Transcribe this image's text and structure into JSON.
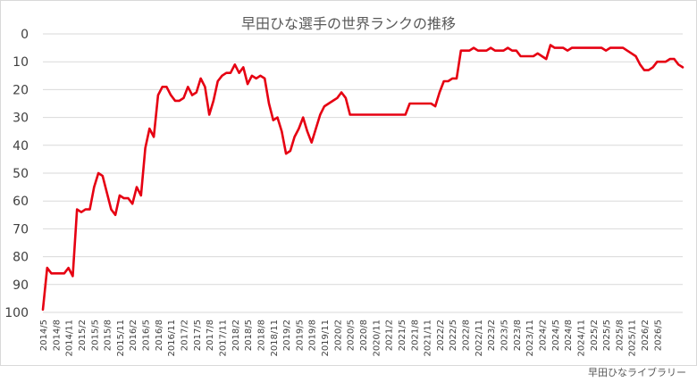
{
  "chart_data": {
    "type": "line",
    "title": "早田ひな選手の世界ランクの推移",
    "xlabel": "",
    "ylabel": "",
    "y_reversed": true,
    "ylim": [
      0,
      100
    ],
    "ytick_labels": [
      "0",
      "10",
      "20",
      "30",
      "40",
      "50",
      "60",
      "70",
      "80",
      "90",
      "100"
    ],
    "x_tick_labels": [
      "2014/5",
      "2014/8",
      "2014/11",
      "2015/2",
      "2015/5",
      "2015/8",
      "2015/11",
      "2016/2",
      "2016/5",
      "2016/8",
      "2016/11",
      "2017/2",
      "2017/5",
      "2017/8",
      "2017/11",
      "2018/2",
      "2018/5",
      "2018/8",
      "2018/11",
      "2019/2",
      "2019/5",
      "2019/8",
      "2019/11",
      "2020/2",
      "2020/5",
      "2020/8",
      "2020/11",
      "2021/2",
      "2021/5",
      "2021/8",
      "2021/11",
      "2022/2",
      "2022/5",
      "2022/8",
      "2022/11",
      "2023/2",
      "2023/5",
      "2023/8",
      "2023/11",
      "2024/2",
      "2024/5",
      "2024/8",
      "2024/11",
      "2025/2",
      "2025/5",
      "2025/8",
      "2025/11",
      "2026/2",
      "2026/5"
    ],
    "grid": true,
    "line_color": "#e60012",
    "series": [
      {
        "values": [
          [
            0,
            99
          ],
          [
            1,
            84
          ],
          [
            2,
            86
          ],
          [
            3,
            86
          ],
          [
            4,
            86
          ],
          [
            5,
            86
          ],
          [
            6,
            84
          ],
          [
            7,
            87
          ],
          [
            8,
            63
          ],
          [
            9,
            64
          ],
          [
            10,
            63
          ],
          [
            11,
            63
          ],
          [
            12,
            55
          ],
          [
            13,
            50
          ],
          [
            14,
            51
          ],
          [
            15,
            57
          ],
          [
            16,
            63
          ],
          [
            17,
            65
          ],
          [
            18,
            58
          ],
          [
            19,
            59
          ],
          [
            20,
            59
          ],
          [
            21,
            61
          ],
          [
            22,
            55
          ],
          [
            23,
            58
          ],
          [
            24,
            41
          ],
          [
            25,
            34
          ],
          [
            26,
            37
          ],
          [
            27,
            22
          ],
          [
            28,
            19
          ],
          [
            29,
            19
          ],
          [
            30,
            22
          ],
          [
            31,
            24
          ],
          [
            32,
            24
          ],
          [
            33,
            23
          ],
          [
            34,
            19
          ],
          [
            35,
            22
          ],
          [
            36,
            21
          ],
          [
            37,
            16
          ],
          [
            38,
            19
          ],
          [
            39,
            29
          ],
          [
            40,
            24
          ],
          [
            41,
            17
          ],
          [
            42,
            15
          ],
          [
            43,
            14
          ],
          [
            44,
            14
          ],
          [
            45,
            11
          ],
          [
            46,
            14
          ],
          [
            47,
            12
          ],
          [
            48,
            18
          ],
          [
            49,
            15
          ],
          [
            50,
            16
          ],
          [
            51,
            15
          ],
          [
            52,
            16
          ],
          [
            53,
            25
          ],
          [
            54,
            31
          ],
          [
            55,
            30
          ],
          [
            56,
            35
          ],
          [
            57,
            43
          ],
          [
            58,
            42
          ],
          [
            59,
            37
          ],
          [
            60,
            34
          ],
          [
            61,
            30
          ],
          [
            62,
            35
          ],
          [
            63,
            39
          ],
          [
            64,
            34
          ],
          [
            65,
            29
          ],
          [
            66,
            26
          ],
          [
            67,
            25
          ],
          [
            68,
            24
          ],
          [
            69,
            23
          ],
          [
            70,
            21
          ],
          [
            71,
            23
          ],
          [
            72,
            29
          ],
          [
            73,
            29
          ],
          [
            74,
            29
          ],
          [
            75,
            29
          ],
          [
            76,
            29
          ],
          [
            77,
            29
          ],
          [
            78,
            29
          ],
          [
            79,
            29
          ],
          [
            80,
            29
          ],
          [
            81,
            29
          ],
          [
            82,
            29
          ],
          [
            83,
            29
          ],
          [
            84,
            29
          ],
          [
            85,
            29
          ],
          [
            86,
            25
          ],
          [
            87,
            25
          ],
          [
            88,
            25
          ],
          [
            89,
            25
          ],
          [
            90,
            25
          ],
          [
            91,
            25
          ],
          [
            92,
            26
          ],
          [
            93,
            21
          ],
          [
            94,
            17
          ],
          [
            95,
            17
          ],
          [
            96,
            16
          ],
          [
            97,
            16
          ],
          [
            98,
            6
          ],
          [
            99,
            6
          ],
          [
            100,
            6
          ],
          [
            101,
            5
          ],
          [
            102,
            6
          ],
          [
            103,
            6
          ],
          [
            104,
            6
          ],
          [
            105,
            5
          ],
          [
            106,
            6
          ],
          [
            107,
            6
          ],
          [
            108,
            6
          ],
          [
            109,
            5
          ],
          [
            110,
            6
          ],
          [
            111,
            6
          ],
          [
            112,
            8
          ],
          [
            113,
            8
          ],
          [
            114,
            8
          ],
          [
            115,
            8
          ],
          [
            116,
            7
          ],
          [
            117,
            8
          ],
          [
            118,
            9
          ],
          [
            119,
            4
          ],
          [
            120,
            5
          ],
          [
            121,
            5
          ],
          [
            122,
            5
          ],
          [
            123,
            6
          ],
          [
            124,
            5
          ],
          [
            125,
            5
          ],
          [
            126,
            5
          ],
          [
            127,
            5
          ],
          [
            128,
            5
          ],
          [
            129,
            5
          ],
          [
            130,
            5
          ],
          [
            131,
            5
          ],
          [
            132,
            6
          ],
          [
            133,
            5
          ],
          [
            134,
            5
          ],
          [
            135,
            5
          ],
          [
            136,
            5
          ],
          [
            137,
            6
          ],
          [
            138,
            7
          ],
          [
            139,
            8
          ],
          [
            140,
            11
          ],
          [
            141,
            13
          ],
          [
            142,
            13
          ],
          [
            143,
            12
          ],
          [
            144,
            10
          ],
          [
            145,
            10
          ],
          [
            146,
            10
          ],
          [
            147,
            9
          ],
          [
            148,
            9
          ],
          [
            149,
            11
          ],
          [
            150,
            12
          ]
        ]
      }
    ]
  },
  "footer": {
    "source_text": "早田ひなライブラリー"
  }
}
